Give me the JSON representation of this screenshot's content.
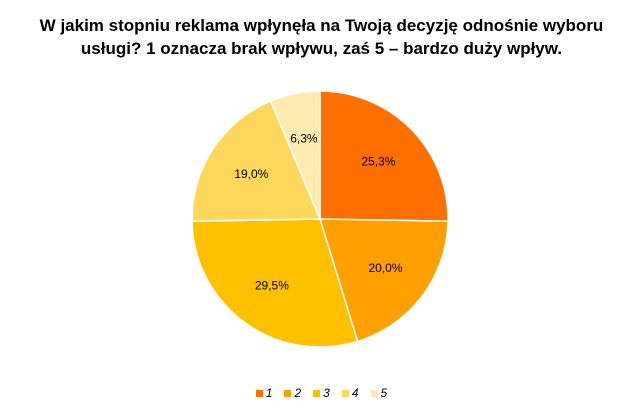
{
  "chart_data": {
    "type": "pie",
    "title": [
      "W jakim stopniu reklama wpłynęła na Twoją decyzję odnośnie wyboru",
      "usługi? 1 oznacza brak wpływu, zaś 5 – bardzo duży wpływ."
    ],
    "categories": [
      "1",
      "2",
      "3",
      "4",
      "5"
    ],
    "values": [
      25.3,
      20.0,
      29.5,
      19.0,
      6.3
    ],
    "labels": [
      "25,3%",
      "20,0%",
      "29,5%",
      "19,0%",
      "6,3%"
    ],
    "colors": [
      "#FF6F00",
      "#FF9F00",
      "#FFC000",
      "#FFD75A",
      "#FFEBB0"
    ],
    "legend_position": "bottom"
  }
}
